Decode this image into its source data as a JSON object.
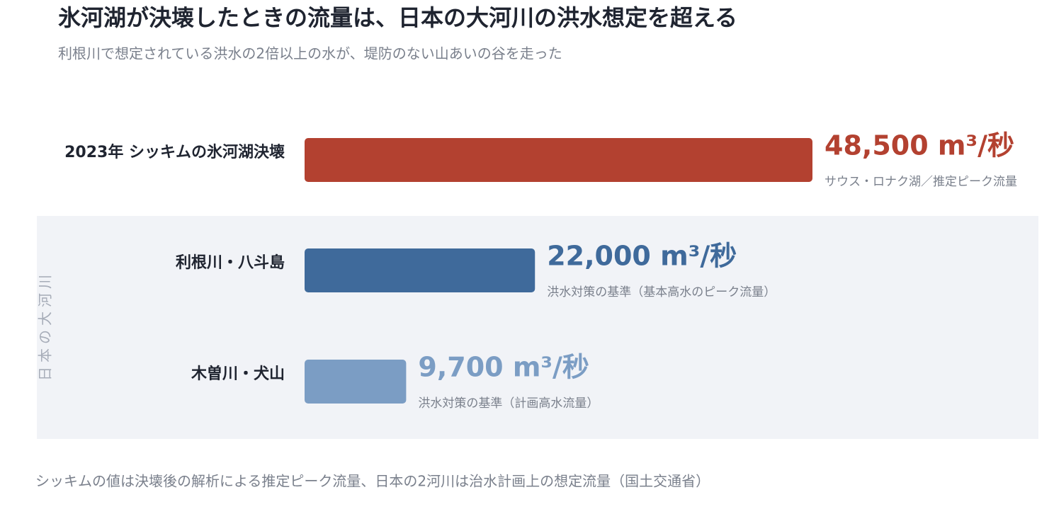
{
  "chart_data": {
    "type": "bar",
    "orientation": "horizontal",
    "title": "氷河湖が決壊したときの流量は、日本の大河川の洪水想定を超える",
    "subtitle": "利根川で想定されている洪水の2倍以上の水が、堤防のない山あいの谷を走った",
    "categories": [
      "2023年 シッキムの氷河湖決壊",
      "利根川・八斗島",
      "木曽川・犬山"
    ],
    "values": [
      48500,
      22000,
      9700
    ],
    "value_labels": [
      "48,500 m³/秒",
      "22,000 m³/秒",
      "9,700 m³/秒"
    ],
    "notes": [
      "サウス・ロナク湖／推定ピーク流量",
      "洪水対策の基準（基本高水のピーク流量）",
      "洪水対策の基準（計画高水流量）"
    ],
    "colors": [
      "#b34130",
      "#3f6a9b",
      "#7b9dc4"
    ],
    "group_label": "日本の大河川",
    "footnote": "シッキムの値は決壊後の解析による推定ピーク流量、日本の2河川は治水計画上の想定流量（国土交通省）"
  }
}
